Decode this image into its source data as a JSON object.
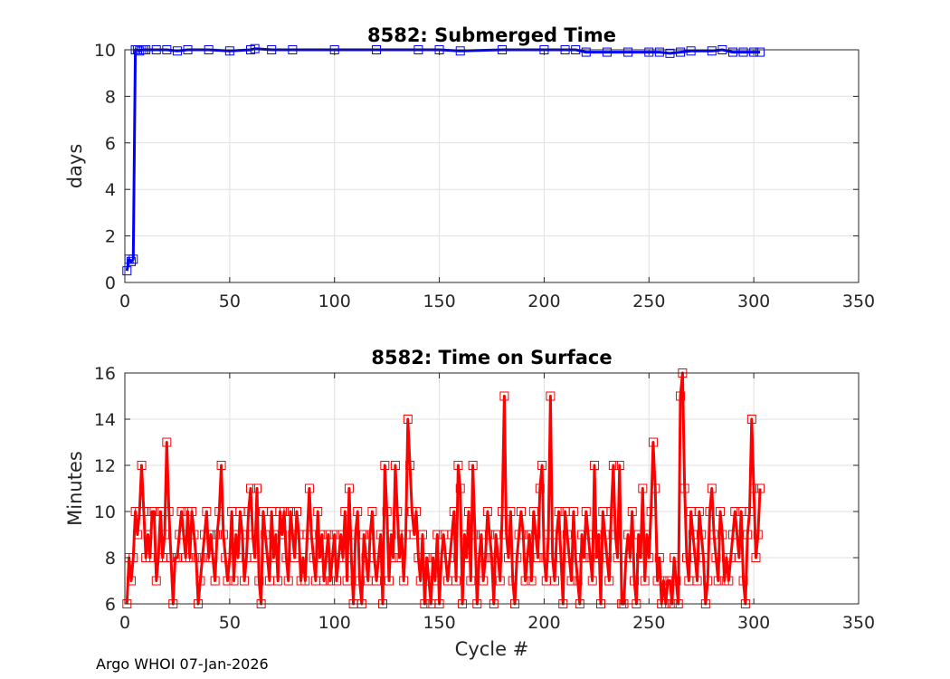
{
  "footer_text": "Argo WHOI 07-Jan-2026",
  "chart_data": [
    {
      "type": "line",
      "title": "8582: Submerged Time",
      "xlabel": "",
      "ylabel": "days",
      "xlim": [
        0,
        350
      ],
      "ylim": [
        0,
        10
      ],
      "xticks": [
        0,
        50,
        100,
        150,
        200,
        250,
        300,
        350
      ],
      "yticks": [
        0,
        2,
        4,
        6,
        8,
        10
      ],
      "grid": true,
      "color": "#0000ff",
      "marker": "square",
      "series": [
        {
          "x": [
            1,
            2,
            3,
            4,
            5,
            6,
            7,
            8,
            9,
            10,
            15,
            20,
            25,
            30,
            40,
            50,
            60,
            62,
            70,
            80,
            100,
            120,
            140,
            150,
            160,
            180,
            200,
            210,
            215,
            220,
            230,
            240,
            250,
            255,
            260,
            265,
            270,
            280,
            285,
            290,
            295,
            300,
            303
          ],
          "y": [
            0.5,
            1.0,
            0.9,
            1.0,
            10.0,
            10.0,
            9.95,
            10.0,
            10.0,
            10.0,
            10.0,
            10.0,
            9.95,
            10.0,
            10.0,
            9.95,
            10.0,
            10.05,
            10.0,
            10.0,
            10.0,
            10.0,
            10.0,
            10.0,
            9.95,
            10.0,
            10.0,
            10.0,
            10.0,
            9.9,
            9.9,
            9.9,
            9.9,
            9.9,
            9.85,
            9.9,
            9.95,
            9.95,
            10.0,
            9.9,
            9.9,
            9.9,
            9.9
          ]
        }
      ]
    },
    {
      "type": "line",
      "title": "8582: Time on Surface",
      "xlabel": "Cycle #",
      "ylabel": "Minutes",
      "xlim": [
        0,
        350
      ],
      "ylim": [
        6,
        16
      ],
      "xticks": [
        0,
        50,
        100,
        150,
        200,
        250,
        300,
        350
      ],
      "yticks": [
        6,
        8,
        10,
        12,
        14,
        16
      ],
      "grid": true,
      "color": "#ff0000",
      "marker": "square",
      "series": [
        {
          "x": [
            1,
            2,
            3,
            4,
            5,
            6,
            7,
            8,
            9,
            10,
            11,
            12,
            13,
            14,
            15,
            16,
            17,
            18,
            19,
            20,
            21,
            22,
            23,
            24,
            25,
            26,
            27,
            28,
            29,
            30,
            31,
            32,
            33,
            34,
            35,
            36,
            37,
            38,
            39,
            40,
            41,
            42,
            43,
            44,
            45,
            46,
            47,
            48,
            49,
            50,
            51,
            52,
            53,
            54,
            55,
            56,
            57,
            58,
            59,
            60,
            61,
            62,
            63,
            64,
            65,
            66,
            67,
            68,
            69,
            70,
            71,
            72,
            73,
            74,
            75,
            76,
            77,
            78,
            79,
            80,
            81,
            82,
            83,
            84,
            85,
            86,
            87,
            88,
            89,
            90,
            91,
            92,
            93,
            94,
            95,
            96,
            97,
            98,
            99,
            100,
            101,
            102,
            103,
            104,
            105,
            106,
            107,
            108,
            109,
            110,
            111,
            112,
            113,
            114,
            115,
            116,
            117,
            118,
            119,
            120,
            121,
            122,
            123,
            124,
            125,
            126,
            127,
            128,
            129,
            130,
            131,
            132,
            133,
            134,
            135,
            136,
            137,
            138,
            139,
            140,
            141,
            142,
            143,
            144,
            145,
            146,
            147,
            148,
            149,
            150,
            151,
            152,
            153,
            154,
            155,
            156,
            157,
            158,
            159,
            160,
            161,
            162,
            163,
            164,
            165,
            166,
            167,
            168,
            169,
            170,
            171,
            172,
            173,
            174,
            175,
            176,
            177,
            178,
            179,
            180,
            181,
            182,
            183,
            184,
            185,
            186,
            187,
            188,
            189,
            190,
            191,
            192,
            193,
            194,
            195,
            196,
            197,
            198,
            199,
            200,
            201,
            202,
            203,
            204,
            205,
            206,
            207,
            208,
            209,
            210,
            211,
            212,
            213,
            214,
            215,
            216,
            217,
            218,
            219,
            220,
            221,
            222,
            223,
            224,
            225,
            226,
            227,
            228,
            229,
            230,
            231,
            232,
            233,
            234,
            235,
            236,
            237,
            238,
            239,
            240,
            241,
            242,
            243,
            244,
            245,
            246,
            247,
            248,
            249,
            250,
            251,
            252,
            253,
            254,
            255,
            256,
            257,
            258,
            259,
            260,
            261,
            262,
            263,
            264,
            265,
            266,
            267,
            268,
            269,
            270,
            271,
            272,
            273,
            274,
            275,
            276,
            277,
            278,
            279,
            280,
            281,
            282,
            283,
            284,
            285,
            286,
            287,
            288,
            289,
            290,
            291,
            292,
            293,
            294,
            295,
            296,
            297,
            298,
            299,
            300,
            301,
            302,
            303
          ],
          "y": [
            6,
            8,
            7,
            8,
            10,
            9,
            10,
            12,
            10,
            8,
            9,
            8,
            10,
            10,
            7,
            8,
            10,
            8,
            9,
            13,
            10,
            8,
            6,
            8,
            8,
            9,
            10,
            9,
            8,
            10,
            8,
            10,
            9,
            8,
            6,
            7,
            8,
            9,
            10,
            8,
            9,
            8,
            7,
            9,
            10,
            12,
            9,
            8,
            7,
            8,
            10,
            7,
            9,
            8,
            10,
            9,
            7,
            8,
            10,
            11,
            9,
            8,
            11,
            7,
            6,
            10,
            9,
            8,
            7,
            10,
            8,
            9,
            7,
            10,
            9,
            10,
            8,
            7,
            10,
            9,
            8,
            10,
            9,
            7,
            8,
            7,
            9,
            11,
            9,
            8,
            7,
            10,
            8,
            9,
            7,
            8,
            9,
            7,
            8,
            9,
            7,
            8,
            9,
            8,
            10,
            7,
            11,
            8,
            6,
            9,
            10,
            7,
            6,
            9,
            8,
            7,
            9,
            10,
            8,
            7,
            8,
            9,
            6,
            12,
            10,
            7,
            9,
            8,
            12,
            10,
            8,
            9,
            7,
            9,
            14,
            12,
            10,
            9,
            10,
            8,
            7,
            9,
            6,
            8,
            7,
            6,
            8,
            7,
            9,
            6,
            8,
            9,
            8,
            7,
            8,
            9,
            10,
            7,
            12,
            11,
            6,
            9,
            8,
            10,
            7,
            12,
            9,
            6,
            8,
            9,
            7,
            8,
            10,
            9,
            8,
            6,
            9,
            8,
            7,
            10,
            15,
            9,
            8,
            10,
            7,
            6,
            8,
            9,
            10,
            9,
            7,
            8,
            9,
            7,
            10,
            9,
            8,
            11,
            12,
            8,
            7,
            9,
            15,
            8,
            7,
            9,
            10,
            8,
            6,
            10,
            9,
            8,
            7,
            10,
            8,
            7,
            6,
            9,
            8,
            10,
            9,
            8,
            7,
            12,
            8,
            9,
            6,
            10,
            9,
            8,
            7,
            10,
            12,
            9,
            8,
            12,
            6,
            6,
            8,
            9,
            8,
            10,
            7,
            6,
            9,
            8,
            11,
            7,
            9,
            8,
            10,
            13,
            11,
            7,
            8,
            6,
            7,
            6,
            7,
            7,
            6,
            8,
            7,
            6,
            15,
            16,
            11,
            8,
            7,
            10,
            9,
            8,
            7,
            10,
            9,
            8,
            6,
            7,
            10,
            11,
            9,
            8,
            7,
            10,
            9,
            7,
            8,
            7,
            8,
            9,
            10,
            9,
            8,
            10,
            7,
            6,
            9,
            10,
            14,
            11,
            8,
            9,
            11
          ]
        }
      ]
    }
  ]
}
